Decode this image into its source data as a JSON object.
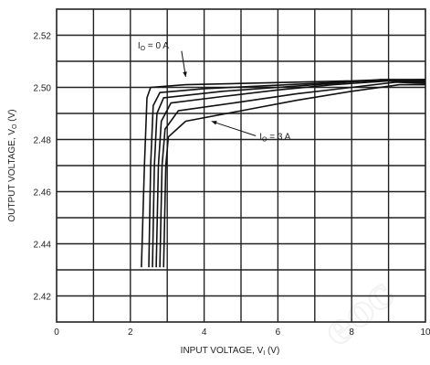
{
  "chart_data": {
    "type": "line",
    "title": "",
    "xlabel": "INPUT VOLTAGE, V",
    "xlabel_sub": "I",
    "xlabel_unit": "(V)",
    "ylabel": "OUTPUT VOLTAGE, V",
    "ylabel_sub": "O",
    "ylabel_unit": "(V)",
    "xlim": [
      0,
      10
    ],
    "ylim": [
      2.41,
      2.53
    ],
    "xticks": [
      0,
      2,
      4,
      6,
      8,
      10
    ],
    "xtick_labels": [
      "0",
      "2",
      "4",
      "6",
      "8",
      "10"
    ],
    "yticks": [
      2.42,
      2.44,
      2.46,
      2.48,
      2.5,
      2.52
    ],
    "ytick_labels": [
      "2.42",
      "2.44",
      "2.46",
      "2.48",
      "2.50",
      "2.52"
    ],
    "grid": true,
    "grid_step_x": 1,
    "grid_step_y": 0.01,
    "line_color": "#111111",
    "grid_color": "#222222",
    "annotations": [
      {
        "id": "io0",
        "text_main": "I",
        "text_sub": "O",
        "text_rest": " = 0 A",
        "at": [
          2.2,
          2.515
        ],
        "arrow_to": [
          3.5,
          2.504
        ]
      },
      {
        "id": "io3",
        "text_main": "I",
        "text_sub": "O",
        "text_rest": " = 3 A",
        "at": [
          5.5,
          2.48
        ],
        "arrow_to": [
          4.2,
          2.487
        ]
      }
    ],
    "series": [
      {
        "points": [
          [
            2.3,
            2.431
          ],
          [
            2.38,
            2.47
          ],
          [
            2.45,
            2.496
          ],
          [
            2.55,
            2.5
          ],
          [
            3.5,
            2.501
          ],
          [
            5,
            2.5015
          ],
          [
            6.5,
            2.502
          ],
          [
            8,
            2.5025
          ],
          [
            9,
            2.503
          ],
          [
            10,
            2.503
          ]
        ]
      },
      {
        "points": [
          [
            2.5,
            2.431
          ],
          [
            2.55,
            2.47
          ],
          [
            2.62,
            2.493
          ],
          [
            2.8,
            2.498
          ],
          [
            4,
            2.4995
          ],
          [
            5.5,
            2.5005
          ],
          [
            7,
            2.5015
          ],
          [
            8.5,
            2.5025
          ],
          [
            10,
            2.503
          ]
        ]
      },
      {
        "points": [
          [
            2.6,
            2.431
          ],
          [
            2.65,
            2.47
          ],
          [
            2.72,
            2.49
          ],
          [
            2.9,
            2.496
          ],
          [
            4.5,
            2.4985
          ],
          [
            6,
            2.5
          ],
          [
            7.5,
            2.5015
          ],
          [
            8.8,
            2.503
          ],
          [
            10,
            2.5025
          ]
        ]
      },
      {
        "points": [
          [
            2.7,
            2.431
          ],
          [
            2.76,
            2.47
          ],
          [
            2.84,
            2.487
          ],
          [
            3.1,
            2.494
          ],
          [
            4.5,
            2.4965
          ],
          [
            6,
            2.499
          ],
          [
            7.5,
            2.501
          ],
          [
            9,
            2.5025
          ],
          [
            10,
            2.502
          ]
        ]
      },
      {
        "points": [
          [
            2.8,
            2.431
          ],
          [
            2.86,
            2.47
          ],
          [
            2.94,
            2.484
          ],
          [
            3.3,
            2.491
          ],
          [
            4.8,
            2.494
          ],
          [
            6.5,
            2.4975
          ],
          [
            8,
            2.5
          ],
          [
            9.2,
            2.502
          ],
          [
            10,
            2.5015
          ]
        ]
      },
      {
        "points": [
          [
            2.9,
            2.431
          ],
          [
            2.96,
            2.47
          ],
          [
            3.03,
            2.481
          ],
          [
            3.5,
            2.487
          ],
          [
            5,
            2.491
          ],
          [
            6.5,
            2.495
          ],
          [
            8,
            2.4985
          ],
          [
            9.3,
            2.501
          ],
          [
            10,
            2.501
          ]
        ]
      }
    ]
  },
  "watermark": "eoc"
}
